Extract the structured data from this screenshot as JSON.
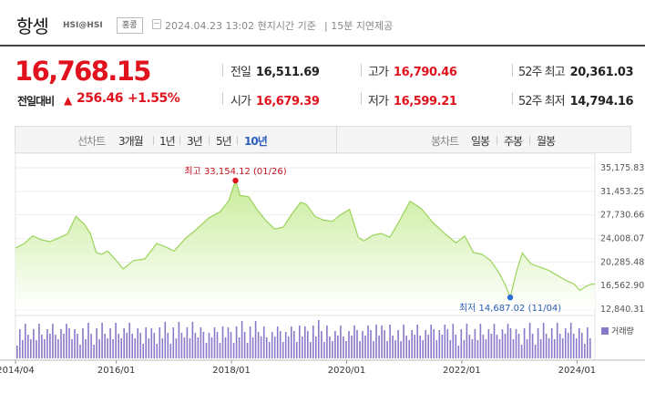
{
  "header": {
    "name": "항셍",
    "code": "HSI@HSI",
    "market": "홍콩",
    "timestamp": "2024.04.23 13:02 현지시간 기준",
    "delay": "| 15분 지연제공"
  },
  "quote": {
    "price": "16,768.15",
    "change_label": "전일대비",
    "change_arrow": "▲",
    "change": "256.46",
    "change_pct": "+1.55%"
  },
  "stats": [
    {
      "label": "전일",
      "value": "16,511.69"
    },
    {
      "label": "고가",
      "value": "16,790.46"
    },
    {
      "label": "52주 최고",
      "value": "20,361.03"
    },
    {
      "label": "시가",
      "value": "16,679.39"
    },
    {
      "label": "저가",
      "value": "16,599.21"
    },
    {
      "label": "52주 최저",
      "value": "14,794.16"
    }
  ],
  "tabs": {
    "line_label": "선차트",
    "line_options": [
      "3개월",
      "1년",
      "3년",
      "5년",
      "10년"
    ],
    "line_active": "10년",
    "candle_label": "봉차트",
    "candle_options": [
      "일봉",
      "주봉",
      "월봉"
    ]
  },
  "colors": {
    "up": "#e0121e",
    "area_top": "#c8ec9a",
    "area_bottom": "#ffffff",
    "line": "#9ad35a",
    "volume": "#8a78c8",
    "active_tab": "#2b5fbd",
    "low_marker": "#2a6fd4"
  },
  "chart_data": {
    "type": "area",
    "title": "",
    "y_ticks": [
      "35,175.83",
      "31,453.25",
      "27,730.66",
      "24,008.07",
      "20,285.48",
      "16,562.90",
      "12,840.31"
    ],
    "ylim": [
      12840.31,
      35175.83
    ],
    "x_ticks": [
      "2014/04",
      "2016/01",
      "2018/01",
      "2020/01",
      "2022/01",
      "2024/01"
    ],
    "x_tick_values": [
      2014.25,
      2016.0,
      2018.0,
      2020.0,
      2022.0,
      2024.0
    ],
    "x_range": [
      2014.25,
      2024.31
    ],
    "series": [
      {
        "x": [
          2014.25,
          2014.4,
          2014.55,
          2014.7,
          2014.85,
          2015.0,
          2015.15,
          2015.3,
          2015.45,
          2015.55,
          2015.65,
          2015.75,
          2015.85,
          2016.0,
          2016.12,
          2016.3,
          2016.5,
          2016.7,
          2016.85,
          2017.0,
          2017.2,
          2017.4,
          2017.6,
          2017.8,
          2017.95,
          2018.07,
          2018.15,
          2018.3,
          2018.45,
          2018.6,
          2018.75,
          2018.9,
          2019.05,
          2019.2,
          2019.3,
          2019.45,
          2019.6,
          2019.75,
          2019.9,
          2020.05,
          2020.2,
          2020.3,
          2020.45,
          2020.6,
          2020.75,
          2020.9,
          2021.1,
          2021.3,
          2021.5,
          2021.7,
          2021.9,
          2022.05,
          2022.2,
          2022.35,
          2022.5,
          2022.65,
          2022.75,
          2022.84,
          2022.95,
          2023.05,
          2023.2,
          2023.35,
          2023.5,
          2023.65,
          2023.8,
          2023.95,
          2024.05,
          2024.15,
          2024.25,
          2024.31
        ],
        "y": [
          22500,
          23200,
          24400,
          23800,
          23500,
          24100,
          24700,
          27500,
          26200,
          24800,
          21800,
          21500,
          22000,
          20500,
          19200,
          20500,
          20800,
          23200,
          22700,
          22000,
          24000,
          25500,
          27200,
          28200,
          29900,
          33154.12,
          30800,
          30600,
          28500,
          26800,
          25500,
          25800,
          27900,
          29700,
          29400,
          27500,
          26900,
          26700,
          27800,
          28600,
          24200,
          23600,
          24500,
          24800,
          24200,
          26500,
          29900,
          28700,
          26500,
          24800,
          23300,
          24400,
          21800,
          21500,
          20500,
          18500,
          16700,
          14687.02,
          18800,
          21700,
          20000,
          19500,
          19000,
          18200,
          17400,
          16800,
          15800,
          16400,
          16800,
          16768.15
        ]
      }
    ],
    "annotations": [
      {
        "label": "최고 33,154.12 (01/26)",
        "x": 2018.07,
        "y": 33154.12,
        "kind": "high"
      },
      {
        "label": "최저 14,687.02 (11/04)",
        "x": 2022.84,
        "y": 14687.02,
        "kind": "low"
      }
    ],
    "volume_label": "거래량"
  }
}
